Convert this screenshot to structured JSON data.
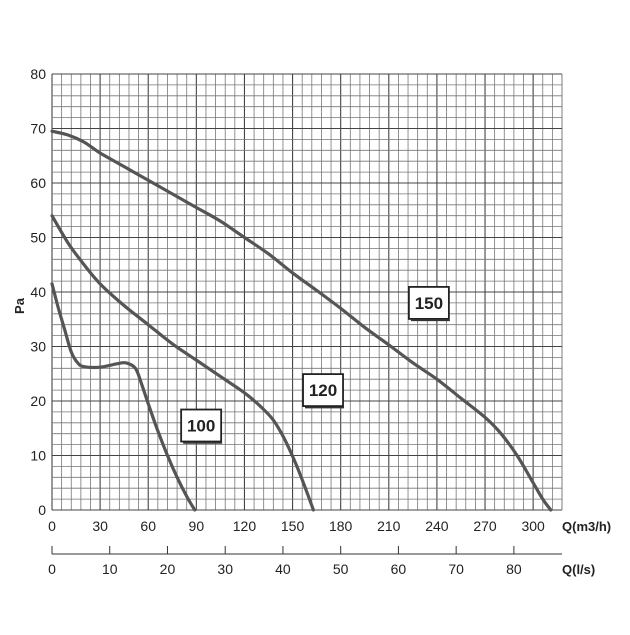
{
  "chart_data": {
    "type": "line",
    "ylabel": "Pa",
    "xlabel": "Q(m3/h)",
    "x2label": "Q(l/s)",
    "xlim": [
      0,
      318
    ],
    "ylim": [
      0,
      80
    ],
    "x_ticks": [
      "0",
      "30",
      "60",
      "90",
      "120",
      "150",
      "180",
      "210",
      "240",
      "270",
      "300"
    ],
    "x2_ticks": [
      "0",
      "10",
      "20",
      "30",
      "40",
      "50",
      "60",
      "70",
      "80"
    ],
    "y_ticks": [
      "0",
      "10",
      "20",
      "30",
      "40",
      "50",
      "60",
      "70",
      "80"
    ],
    "grid": true,
    "line_color": "#555555",
    "series": [
      {
        "name": "100",
        "points": [
          [
            0,
            41.5
          ],
          [
            4,
            37
          ],
          [
            8,
            33
          ],
          [
            12,
            29
          ],
          [
            16,
            27
          ],
          [
            20,
            26.3
          ],
          [
            30,
            26.2
          ],
          [
            40,
            26.8
          ],
          [
            46,
            27
          ],
          [
            52,
            26
          ],
          [
            56,
            23
          ],
          [
            60,
            19.5
          ],
          [
            66,
            14.5
          ],
          [
            72,
            10
          ],
          [
            78,
            6
          ],
          [
            84,
            2.5
          ],
          [
            89,
            0
          ]
        ]
      },
      {
        "name": "120",
        "points": [
          [
            0,
            54
          ],
          [
            10,
            49
          ],
          [
            20,
            45
          ],
          [
            30,
            41.5
          ],
          [
            45,
            37.5
          ],
          [
            60,
            34
          ],
          [
            75,
            30.5
          ],
          [
            90,
            27.5
          ],
          [
            105,
            24.5
          ],
          [
            120,
            21.5
          ],
          [
            130,
            19
          ],
          [
            138,
            16.5
          ],
          [
            145,
            13
          ],
          [
            152,
            8.5
          ],
          [
            158,
            4
          ],
          [
            163,
            0
          ]
        ]
      },
      {
        "name": "150",
        "points": [
          [
            0,
            69.5
          ],
          [
            10,
            68.8
          ],
          [
            20,
            67.5
          ],
          [
            30,
            65.5
          ],
          [
            45,
            63
          ],
          [
            60,
            60.5
          ],
          [
            75,
            58
          ],
          [
            90,
            55.5
          ],
          [
            105,
            53
          ],
          [
            120,
            50
          ],
          [
            135,
            47
          ],
          [
            150,
            43.5
          ],
          [
            165,
            40.3
          ],
          [
            180,
            37
          ],
          [
            195,
            33.5
          ],
          [
            210,
            30.3
          ],
          [
            225,
            27
          ],
          [
            240,
            24
          ],
          [
            255,
            20.5
          ],
          [
            270,
            17
          ],
          [
            280,
            14
          ],
          [
            290,
            10
          ],
          [
            300,
            5
          ],
          [
            306,
            2
          ],
          [
            311,
            0
          ]
        ]
      }
    ],
    "annotations": [
      {
        "text": "150",
        "x": 235,
        "y": 38
      },
      {
        "text": "120",
        "x": 169,
        "y": 22
      },
      {
        "text": "100",
        "x": 93,
        "y": 15.5
      }
    ]
  }
}
